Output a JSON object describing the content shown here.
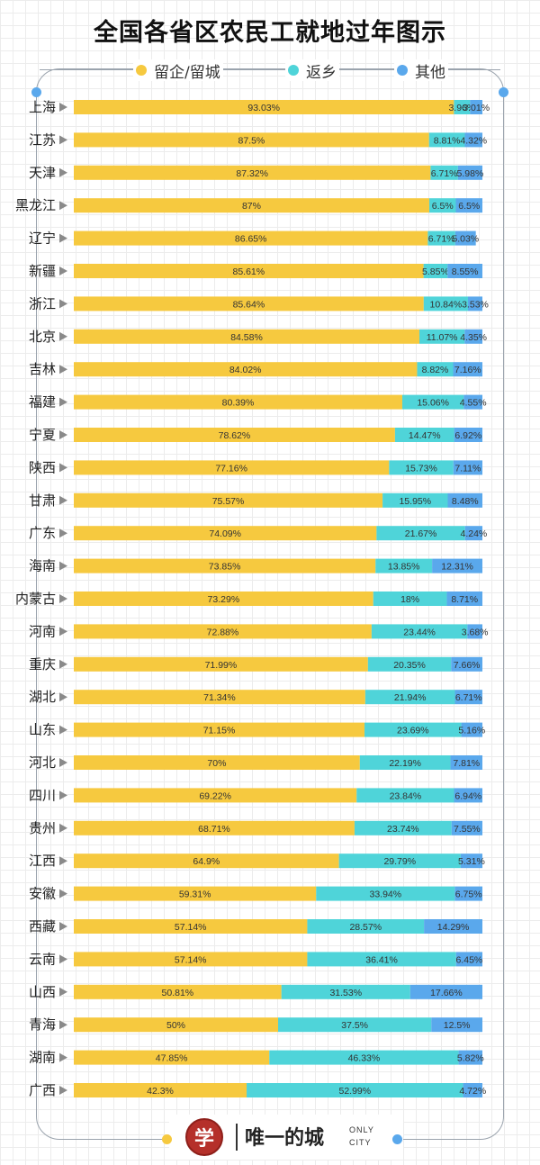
{
  "title": "全国各省区农民工就地过年图示",
  "legend": [
    {
      "label": "留企/留城",
      "color": "#f6c93f"
    },
    {
      "label": "返乡",
      "color": "#4fd4d9"
    },
    {
      "label": "其他",
      "color": "#5aa8ec"
    }
  ],
  "footer": {
    "logo_glyph": "学",
    "brand": "唯一的城",
    "sub1": "ONLY",
    "sub2": "CITY"
  },
  "chart_data": {
    "type": "bar",
    "orientation": "horizontal",
    "stacked": true,
    "units": "%",
    "categories": [
      "上海",
      "江苏",
      "天津",
      "黑龙江",
      "辽宁",
      "新疆",
      "浙江",
      "北京",
      "吉林",
      "福建",
      "宁夏",
      "陕西",
      "甘肃",
      "广东",
      "海南",
      "内蒙古",
      "河南",
      "重庆",
      "湖北",
      "山东",
      "河北",
      "四川",
      "贵州",
      "江西",
      "安徽",
      "西藏",
      "云南",
      "山西",
      "青海",
      "湖南",
      "广西"
    ],
    "series": [
      {
        "name": "留企/留城",
        "color": "#f6c93f",
        "values": [
          93.03,
          87.5,
          87.32,
          87,
          86.65,
          85.61,
          85.64,
          84.58,
          84.02,
          80.39,
          78.62,
          77.16,
          75.57,
          74.09,
          73.85,
          73.29,
          72.88,
          71.99,
          71.34,
          71.15,
          70,
          69.22,
          68.71,
          64.9,
          59.31,
          57.14,
          57.14,
          50.81,
          50,
          47.85,
          42.3
        ],
        "labels": [
          "93.03%",
          "87.5%",
          "87.32%",
          "87%",
          "86.65%",
          "85.61%",
          "85.64%",
          "84.58%",
          "84.02%",
          "80.39%",
          "78.62%",
          "77.16%",
          "75.57%",
          "74.09%",
          "73.85%",
          "73.29%",
          "72.88%",
          "71.99%",
          "71.34%",
          "71.15%",
          "70%",
          "69.22%",
          "68.71%",
          "64.9%",
          "59.31%",
          "57.14%",
          "57.14%",
          "50.81%",
          "50%",
          "47.85%",
          "42.3%"
        ]
      },
      {
        "name": "返乡",
        "color": "#4fd4d9",
        "values": [
          3.96,
          8.81,
          6.71,
          6.5,
          6.71,
          5.85,
          10.84,
          11.07,
          8.82,
          15.06,
          14.47,
          15.73,
          15.95,
          21.67,
          13.85,
          18,
          23.44,
          20.35,
          21.94,
          23.69,
          22.19,
          23.84,
          23.74,
          29.79,
          33.94,
          28.57,
          36.41,
          31.53,
          37.5,
          46.33,
          52.99
        ],
        "labels": [
          "3.96%",
          "8.81%",
          "6.71%",
          "6.5%",
          "6.71%",
          "5.85%",
          "10.84%",
          "11.07%",
          "8.82%",
          "15.06%",
          "14.47%",
          "15.73%",
          "15.95%",
          "21.67%",
          "13.85%",
          "18%",
          "23.44%",
          "20.35%",
          "21.94%",
          "23.69%",
          "22.19%",
          "23.84%",
          "23.74%",
          "29.79%",
          "33.94%",
          "28.57%",
          "36.41%",
          "31.53%",
          "37.5%",
          "46.33%",
          "52.99%"
        ]
      },
      {
        "name": "其他",
        "color": "#5aa8ec",
        "values": [
          3.01,
          4.32,
          5.98,
          6.5,
          5.03,
          8.55,
          3.53,
          4.35,
          7.16,
          4.55,
          6.92,
          7.11,
          8.48,
          4.24,
          12.31,
          8.71,
          3.68,
          7.66,
          6.71,
          5.16,
          7.81,
          6.94,
          7.55,
          5.31,
          6.75,
          14.29,
          6.45,
          17.66,
          12.5,
          5.82,
          4.72
        ],
        "labels": [
          "3.01%",
          "4.32%",
          "5.98%",
          "6.5%",
          "5.03%",
          "8.55%",
          "3.53%",
          "4.35%",
          "7.16%",
          "4.55%",
          "6.92%",
          "7.11%",
          "8.48%",
          "4.24%",
          "12.31%",
          "8.71%",
          "3.68%",
          "7.66%",
          "6.71%",
          "5.16%",
          "7.81%",
          "6.94%",
          "7.55%",
          "5.31%",
          "6.75%",
          "14.29%",
          "6.45%",
          "17.66%",
          "12.5%",
          "5.82%",
          "4.72%"
        ]
      }
    ],
    "xlim": [
      0,
      100
    ]
  }
}
